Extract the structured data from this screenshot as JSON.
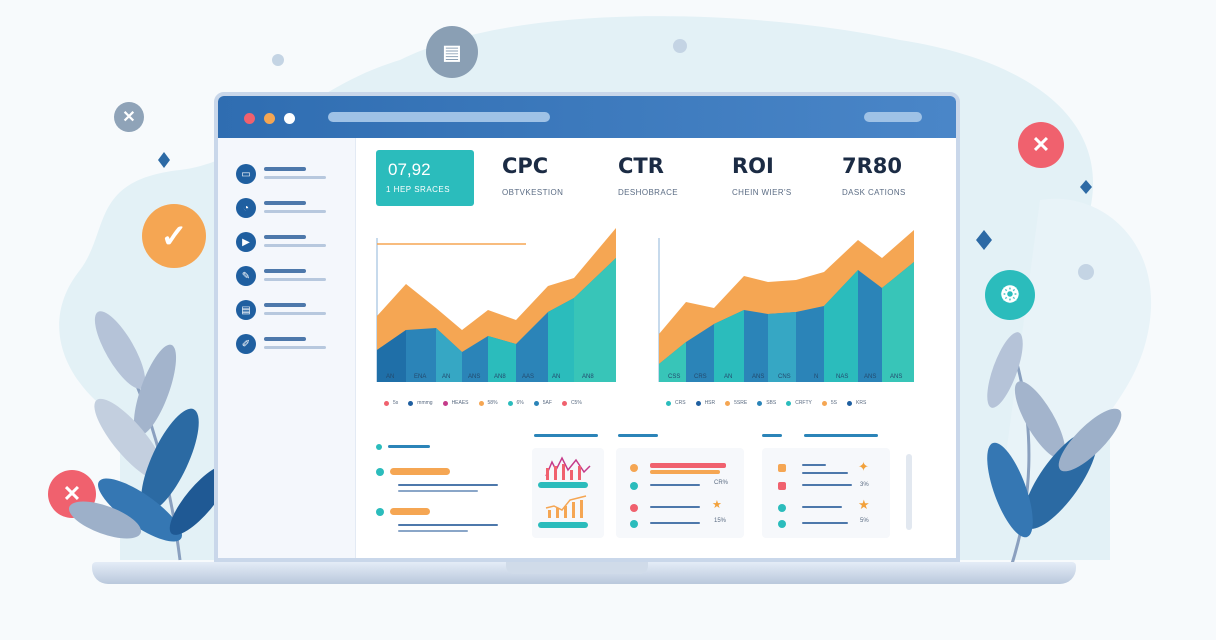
{
  "colors": {
    "orange": "#f5a653",
    "teal": "#2bbcbc",
    "blue": "#2b84b8",
    "navy": "#1f5fa0",
    "red": "#f0616e",
    "check": "#f5a653"
  },
  "sidebar": {
    "icons": [
      "tv-icon",
      "analytics-icon",
      "play-icon",
      "tools-icon",
      "document-icon",
      "edit-icon"
    ]
  },
  "kpis": [
    {
      "value": "07,92",
      "label": "1 HEP SRACES"
    },
    {
      "value": "CPC",
      "label": "OBTVKESTION"
    },
    {
      "value": "CTR",
      "label": "DESHOBRACE"
    },
    {
      "value": "ROI",
      "label": "CHEIN WIER'S"
    },
    {
      "value": "7R80",
      "label": "DASK CATIONS"
    }
  ],
  "charts": {
    "left": {
      "x_ticks": [
        "AN",
        "ENA",
        "AN",
        "ANS",
        "AN8",
        "AAS",
        "AN",
        "AN8"
      ],
      "legend": [
        "5s",
        "mmmg",
        "HEAES",
        "58%",
        "6%",
        "5AF",
        "C5%"
      ]
    },
    "right": {
      "x_ticks": [
        "CSS",
        "CRS",
        "AN",
        "ANS",
        "CNS",
        "N",
        "NAS",
        "ANS",
        "ANS"
      ],
      "legend": [
        "CRS",
        "HSR",
        "5SRE",
        "SBS",
        "CRFTY",
        "5S",
        "KRS"
      ]
    }
  },
  "panels": {
    "mid_right": {
      "values": [
        "CR%",
        "15%"
      ]
    },
    "right": {
      "values": [
        "3%",
        "5%"
      ]
    }
  },
  "float_icons": [
    "close-icon",
    "check-icon",
    "close-icon",
    "close-icon",
    "document-icon",
    "settings-icon"
  ]
}
